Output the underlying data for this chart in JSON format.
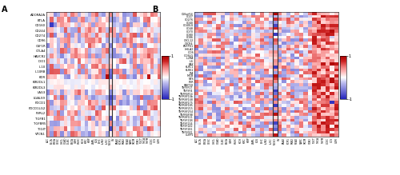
{
  "rows_A": [
    "ADORA2A",
    "BTLA",
    "CD160",
    "CD244",
    "CD274",
    "CD96",
    "CSF1R",
    "CTLA4",
    "HAVCR2",
    "IDO1",
    "IL10",
    "IL10RB",
    "KDR",
    "KIR2DL1",
    "KIR2DL3",
    "LAG3",
    "LGALS9",
    "PDCD1",
    "PDCD1LG2",
    "PVRL2",
    "TGFB1",
    "TGFBR5",
    "TIGIT",
    "VTCN1"
  ],
  "rows_B": [
    "C10orf54",
    "CD27",
    "CD276",
    "CD40",
    "CD40LG",
    "CD48",
    "CD70",
    "CD80",
    "CD86",
    "CXCL12",
    "CXCR4",
    "ENTPD1",
    "HHLA2",
    "ICOS",
    "ICOSLG",
    "IL2RA",
    "IL6",
    "BAK",
    "KLRC1",
    "KLRK1",
    "LTA",
    "MICB",
    "NTS",
    "PVR",
    "RAET1E",
    "TNFSF17",
    "TNFSF4",
    "TNFRSF14",
    "TNFRSF14b",
    "TNFRSF148",
    "TNFRSF175",
    "TNFRSF185",
    "TNFRSF215",
    "TNFRSF254",
    "TNFRSF98",
    "TNFRSF111",
    "TNFSF11B",
    "TNFSF134",
    "TNFSF142",
    "TNFSF181",
    "TNFSF41",
    "ULBP1"
  ],
  "x_labels": [
    "ACC",
    "BLCA",
    "BRCA",
    "CESC",
    "CHOL",
    "COAD",
    "DLBC",
    "ESCA",
    "GBM",
    "HNSC",
    "KICH",
    "KIRC",
    "KIRP",
    "LAML",
    "LGG",
    "LIHC",
    "LUAD",
    "LUSC",
    "MESO",
    "OV",
    "PAAD",
    "PCPG",
    "PRAD",
    "READ",
    "SARC",
    "SKCM",
    "STAD",
    "TGCT",
    "THCA",
    "THYM",
    "UCEC",
    "UCS",
    "UVM"
  ],
  "highlight_col": 18,
  "vmin": -1,
  "vmax": 1,
  "label_A": "A",
  "label_B": "B",
  "cmap_colors": [
    "#2222bb",
    "#5555cc",
    "#8888dd",
    "#bbbbee",
    "#ffffff",
    "#ffbbbb",
    "#ee7777",
    "#cc2222",
    "#aa0000"
  ],
  "colorbar_ticks": [
    1,
    -1
  ],
  "colorbar_labels": [
    "1",
    "-1"
  ]
}
